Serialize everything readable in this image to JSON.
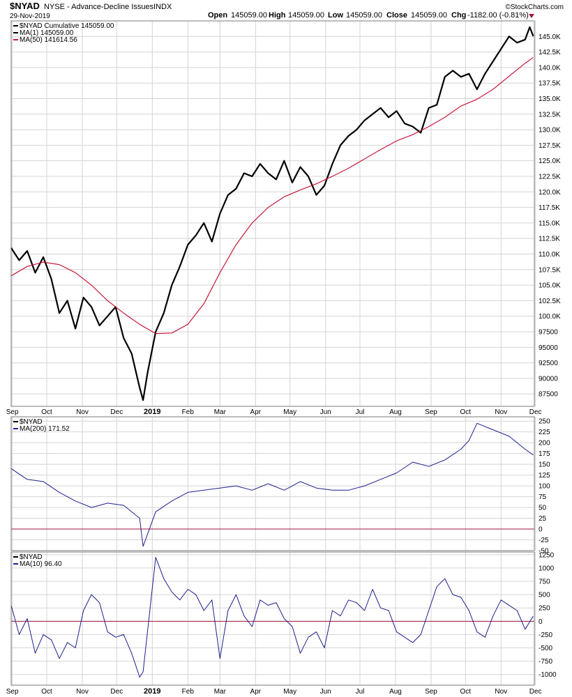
{
  "header": {
    "symbol": "$NYAD",
    "description": "NYSE - Advance-Decline Issues",
    "exchange": "INDX",
    "date": "29-Nov-2019",
    "open_label": "Open",
    "open": "145059.00",
    "high_label": "High",
    "high": "145059.00",
    "low_label": "Low",
    "low": "145059.00",
    "close_label": "Close",
    "close": "145059.00",
    "chg_label": "Chg",
    "chg": "-1182.00 (-0.81%)",
    "chg_icon": "down-triangle-icon",
    "watermark": "©StockCharts.com"
  },
  "colors": {
    "price": "#000000",
    "ma50": "#c8193c",
    "indicator": "#1f1f8c",
    "zero_line": "#a0143c",
    "down": "#a0143c",
    "grid": "#d4d4d4"
  },
  "chart_data": [
    {
      "type": "line",
      "panel": "main",
      "legend": [
        "$NYAD Cumulative 145059.00",
        "MA(1) 145059.00",
        "MA(50) 141614.56"
      ],
      "x_labels": [
        "Sep",
        "Oct",
        "Nov",
        "Dec",
        "2019",
        "Feb",
        "Mar",
        "Apr",
        "May",
        "Jun",
        "Jul",
        "Aug",
        "Sep",
        "Oct",
        "Nov",
        "Dec"
      ],
      "y_ticks": [
        87500,
        90000,
        92500,
        95000,
        97500,
        100000,
        102500,
        105000,
        107500,
        110000,
        112500,
        115000,
        117500,
        120000,
        122500,
        125000,
        127500,
        130000,
        132500,
        135000,
        137500,
        140000,
        142500,
        145000
      ],
      "y_tick_labels": [
        "87500",
        "90000",
        "92500",
        "95000",
        "97500",
        "100.0K",
        "102.5K",
        "105.0K",
        "107.5K",
        "110.0K",
        "112.5K",
        "115.0K",
        "117.5K",
        "120.0K",
        "122.5K",
        "125.0K",
        "127.5K",
        "130.0K",
        "132.5K",
        "135.0K",
        "137.5K",
        "140.0K",
        "142.5K",
        "145.0K"
      ],
      "ylim": [
        85500,
        147500
      ],
      "series": [
        {
          "name": "$NYAD Cumulative",
          "x": [
            "2018-08-31",
            "2018-09-07",
            "2018-09-14",
            "2018-09-21",
            "2018-09-28",
            "2018-10-05",
            "2018-10-12",
            "2018-10-19",
            "2018-10-26",
            "2018-11-02",
            "2018-11-09",
            "2018-11-16",
            "2018-11-23",
            "2018-11-30",
            "2018-12-07",
            "2018-12-14",
            "2018-12-21",
            "2018-12-24",
            "2018-12-28",
            "2019-01-04",
            "2019-01-11",
            "2019-01-18",
            "2019-01-25",
            "2019-02-01",
            "2019-02-08",
            "2019-02-15",
            "2019-02-22",
            "2019-03-01",
            "2019-03-08",
            "2019-03-15",
            "2019-03-22",
            "2019-03-29",
            "2019-04-05",
            "2019-04-12",
            "2019-04-19",
            "2019-04-26",
            "2019-05-03",
            "2019-05-10",
            "2019-05-17",
            "2019-05-24",
            "2019-05-31",
            "2019-06-07",
            "2019-06-14",
            "2019-06-21",
            "2019-06-28",
            "2019-07-05",
            "2019-07-12",
            "2019-07-19",
            "2019-07-26",
            "2019-08-02",
            "2019-08-09",
            "2019-08-16",
            "2019-08-23",
            "2019-08-30",
            "2019-09-06",
            "2019-09-13",
            "2019-09-20",
            "2019-09-27",
            "2019-10-04",
            "2019-10-11",
            "2019-10-18",
            "2019-10-25",
            "2019-11-01",
            "2019-11-08",
            "2019-11-15",
            "2019-11-22",
            "2019-11-26",
            "2019-11-29"
          ],
          "values": [
            111000,
            109000,
            110500,
            107000,
            109500,
            106000,
            100500,
            102500,
            98000,
            103000,
            101500,
            98500,
            100000,
            101500,
            96500,
            94000,
            88500,
            86500,
            91000,
            97500,
            100500,
            105000,
            108000,
            111500,
            113000,
            115000,
            112000,
            116500,
            119500,
            120500,
            123000,
            122500,
            124500,
            123000,
            122000,
            125000,
            121500,
            124000,
            122500,
            119500,
            121000,
            124500,
            127500,
            129000,
            130000,
            131500,
            132500,
            133500,
            132000,
            133000,
            131000,
            130500,
            129500,
            133500,
            134000,
            138500,
            139500,
            138500,
            139000,
            136500,
            139000,
            141000,
            143000,
            145000,
            144000,
            144500,
            146500,
            145059
          ]
        },
        {
          "name": "MA(50)",
          "x": [
            "2018-08-31",
            "2018-09-14",
            "2018-09-28",
            "2018-10-12",
            "2018-10-26",
            "2018-11-09",
            "2018-11-23",
            "2018-12-07",
            "2018-12-21",
            "2019-01-04",
            "2019-01-18",
            "2019-02-01",
            "2019-02-15",
            "2019-03-01",
            "2019-03-15",
            "2019-03-29",
            "2019-04-12",
            "2019-04-26",
            "2019-05-10",
            "2019-05-24",
            "2019-06-07",
            "2019-06-21",
            "2019-07-05",
            "2019-07-19",
            "2019-08-02",
            "2019-08-16",
            "2019-08-30",
            "2019-09-13",
            "2019-09-27",
            "2019-10-11",
            "2019-10-25",
            "2019-11-08",
            "2019-11-22",
            "2019-11-29"
          ],
          "values": [
            106500,
            108000,
            108700,
            108300,
            107000,
            105000,
            102500,
            100500,
            98700,
            97200,
            97300,
            98700,
            102000,
            107000,
            111500,
            115000,
            117500,
            119200,
            120300,
            121300,
            122500,
            123800,
            125300,
            126800,
            128200,
            129200,
            130500,
            132000,
            133800,
            134900,
            136500,
            138600,
            140700,
            141614.56
          ]
        }
      ]
    },
    {
      "type": "line",
      "panel": "middle",
      "legend": [
        "$NYAD",
        "MA(200) 171.52"
      ],
      "y_ticks": [
        -50,
        -25,
        0,
        25,
        50,
        75,
        100,
        125,
        150,
        175,
        200,
        225,
        250
      ],
      "ylim": [
        -50,
        260
      ],
      "series": [
        {
          "name": "MA(200)",
          "x": [
            "2018-08-31",
            "2018-09-14",
            "2018-09-28",
            "2018-10-12",
            "2018-10-26",
            "2018-11-09",
            "2018-11-23",
            "2018-12-07",
            "2018-12-21",
            "2018-12-24",
            "2019-01-04",
            "2019-01-18",
            "2019-02-01",
            "2019-02-15",
            "2019-03-01",
            "2019-03-15",
            "2019-03-29",
            "2019-04-12",
            "2019-04-26",
            "2019-05-10",
            "2019-05-24",
            "2019-06-07",
            "2019-06-21",
            "2019-07-05",
            "2019-07-19",
            "2019-08-02",
            "2019-08-16",
            "2019-08-30",
            "2019-09-13",
            "2019-09-27",
            "2019-10-04",
            "2019-10-11",
            "2019-10-25",
            "2019-11-08",
            "2019-11-22",
            "2019-11-29"
          ],
          "values": [
            140,
            115,
            110,
            85,
            65,
            50,
            60,
            55,
            25,
            -40,
            40,
            65,
            85,
            90,
            95,
            100,
            90,
            105,
            90,
            110,
            95,
            90,
            90,
            100,
            115,
            130,
            155,
            145,
            160,
            185,
            205,
            245,
            230,
            215,
            185,
            171.52
          ]
        }
      ]
    },
    {
      "type": "line",
      "panel": "bottom",
      "legend": [
        "$NYAD",
        "MA(10) 96.40"
      ],
      "y_ticks": [
        -1000,
        -750,
        -500,
        -250,
        0,
        250,
        500,
        750,
        1000,
        1250
      ],
      "ylim": [
        -1200,
        1300
      ],
      "series": [
        {
          "name": "MA(10)",
          "x": [
            "2018-08-31",
            "2018-09-07",
            "2018-09-14",
            "2018-09-21",
            "2018-09-28",
            "2018-10-05",
            "2018-10-12",
            "2018-10-19",
            "2018-10-26",
            "2018-11-02",
            "2018-11-09",
            "2018-11-16",
            "2018-11-23",
            "2018-11-30",
            "2018-12-07",
            "2018-12-14",
            "2018-12-21",
            "2018-12-24",
            "2019-01-04",
            "2019-01-11",
            "2019-01-18",
            "2019-01-25",
            "2019-02-01",
            "2019-02-08",
            "2019-02-15",
            "2019-02-22",
            "2019-03-01",
            "2019-03-08",
            "2019-03-15",
            "2019-03-22",
            "2019-03-29",
            "2019-04-05",
            "2019-04-12",
            "2019-04-19",
            "2019-04-26",
            "2019-05-03",
            "2019-05-10",
            "2019-05-17",
            "2019-05-24",
            "2019-05-31",
            "2019-06-07",
            "2019-06-14",
            "2019-06-21",
            "2019-06-28",
            "2019-07-05",
            "2019-07-12",
            "2019-07-19",
            "2019-07-26",
            "2019-08-02",
            "2019-08-09",
            "2019-08-16",
            "2019-08-23",
            "2019-08-30",
            "2019-09-06",
            "2019-09-13",
            "2019-09-20",
            "2019-09-27",
            "2019-10-04",
            "2019-10-11",
            "2019-10-18",
            "2019-10-25",
            "2019-11-01",
            "2019-11-08",
            "2019-11-15",
            "2019-11-22",
            "2019-11-29"
          ],
          "values": [
            300,
            -250,
            50,
            -600,
            -250,
            -350,
            -700,
            -400,
            -500,
            200,
            500,
            350,
            -200,
            -300,
            -250,
            -600,
            -1050,
            -950,
            1200,
            800,
            550,
            400,
            600,
            500,
            200,
            400,
            -700,
            200,
            500,
            100,
            -100,
            400,
            300,
            350,
            50,
            -100,
            -600,
            -300,
            -200,
            -500,
            200,
            100,
            400,
            350,
            200,
            600,
            250,
            200,
            -200,
            -300,
            -400,
            -250,
            200,
            650,
            800,
            500,
            450,
            200,
            -200,
            -300,
            100,
            400,
            300,
            200,
            -150,
            96.4
          ]
        }
      ]
    }
  ]
}
